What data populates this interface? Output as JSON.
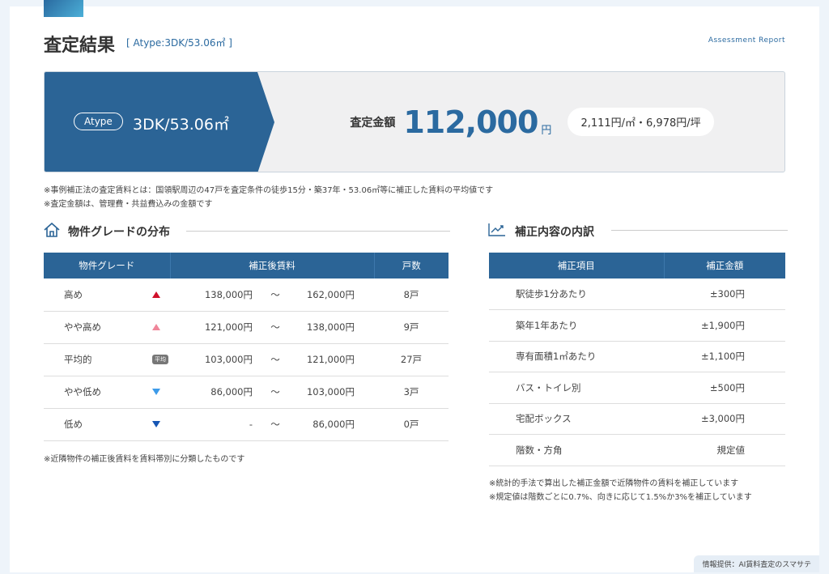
{
  "header": {
    "title": "査定結果",
    "subtitle": "[ Atype:3DK/53.06㎡ ]",
    "report_label": "Assessment Report"
  },
  "banner": {
    "type_pill": "Atype",
    "type_value": "3DK/53.06㎡",
    "amount_label": "査定金額",
    "amount": "112,000",
    "currency": "円",
    "per_unit": "2,111円/㎡・6,978円/坪",
    "colors": {
      "primary": "#2b6496"
    }
  },
  "notes": [
    "※事例補正法の査定賃料とは：国領駅周辺の47戸を査定条件の徒歩15分・築37年・53.06㎡等に補正した賃料の平均値です",
    "※査定金額は、管理費・共益費込みの金額です"
  ],
  "grade_section": {
    "title": "物件グレードの分布",
    "icon": "house-icon",
    "headers": [
      "物件グレード",
      "補正後賃料",
      "戸数"
    ],
    "rows": [
      {
        "grade": "高め",
        "marker": "triangle-up",
        "marker_color": "#d0102a",
        "from": "138,000円",
        "sep": "〜",
        "to": "162,000円",
        "count": "8戸"
      },
      {
        "grade": "やや高め",
        "marker": "triangle-up",
        "marker_color": "#f0869a",
        "from": "121,000円",
        "sep": "〜",
        "to": "138,000円",
        "count": "9戸"
      },
      {
        "grade": "平均的",
        "marker": "badge",
        "badge_text": "平均",
        "from": "103,000円",
        "sep": "〜",
        "to": "121,000円",
        "count": "27戸"
      },
      {
        "grade": "やや低め",
        "marker": "triangle-down",
        "marker_color": "#3d9be9",
        "from": "86,000円",
        "sep": "〜",
        "to": "103,000円",
        "count": "3戸"
      },
      {
        "grade": "低め",
        "marker": "triangle-down",
        "marker_color": "#1656b4",
        "from": "-",
        "sep": "〜",
        "to": "86,000円",
        "count": "0戸"
      }
    ],
    "note": "※近隣物件の補正後賃料を賃料帯別に分類したものです"
  },
  "adjust_section": {
    "title": "補正内容の内訳",
    "icon": "trend-chart-icon",
    "headers": [
      "補正項目",
      "補正金額"
    ],
    "rows": [
      {
        "item": "駅徒歩1分あたり",
        "amount": "±300円"
      },
      {
        "item": "築年1年あたり",
        "amount": "±1,900円"
      },
      {
        "item": "専有面積1㎡あたり",
        "amount": "±1,100円"
      },
      {
        "item": "バス・トイレ別",
        "amount": "±500円"
      },
      {
        "item": "宅配ボックス",
        "amount": "±3,000円"
      },
      {
        "item": "階数・方角",
        "amount": "規定値"
      }
    ],
    "notes": [
      "※統計的手法で算出した補正金額で近隣物件の賃料を補正しています",
      "※規定値は階数ごとに0.7%、向きに応じて1.5%か3%を補正しています"
    ]
  },
  "footer": {
    "credit": "情報提供：AI賃料査定のスマサテ"
  }
}
